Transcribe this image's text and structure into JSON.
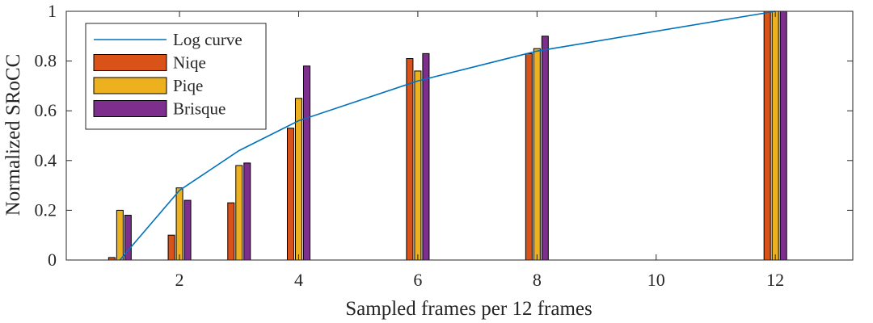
{
  "chart_data": {
    "type": "bar",
    "xlabel": "Sampled frames per 12 frames",
    "ylabel": "Normalized SRoCC",
    "ylim": [
      0,
      1
    ],
    "y_ticks": [
      "0",
      "0.2",
      "0.4",
      "0.6",
      "0.8",
      "1"
    ],
    "x_ticks": [
      "2",
      "4",
      "6",
      "8",
      "10",
      "12"
    ],
    "categories": [
      "1",
      "2",
      "3",
      "4",
      "6",
      "8",
      "12"
    ],
    "legend_position": "top-left",
    "grid": false,
    "series": [
      {
        "name": "Log curve",
        "kind": "line",
        "color": "#0072bd",
        "x": [
          "1",
          "2",
          "3",
          "4",
          "6",
          "8",
          "12"
        ],
        "values": [
          0.0,
          0.28,
          0.44,
          0.56,
          0.72,
          0.84,
          1.0
        ]
      },
      {
        "name": "Niqe",
        "kind": "bar",
        "color": "#d95319",
        "values": [
          0.01,
          0.1,
          0.23,
          0.53,
          0.81,
          0.83,
          1.0
        ]
      },
      {
        "name": "Piqe",
        "kind": "bar",
        "color": "#edb120",
        "values": [
          0.2,
          0.29,
          0.38,
          0.65,
          0.76,
          0.85,
          1.0
        ]
      },
      {
        "name": "Brisque",
        "kind": "bar",
        "color": "#7e2f8e",
        "values": [
          0.18,
          0.24,
          0.39,
          0.78,
          0.83,
          0.9,
          1.0
        ]
      }
    ]
  }
}
